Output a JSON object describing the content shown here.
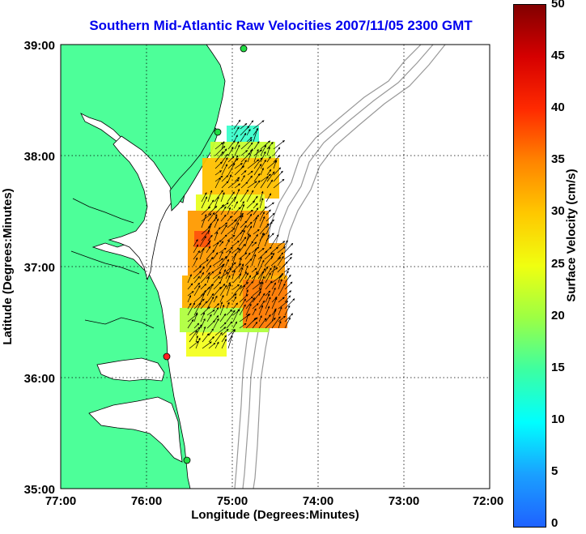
{
  "title": "Southern Mid-Atlantic Raw Velocities 2007/11/05 2300 GMT",
  "axes": {
    "xlabel": "Longitude (Degrees:Minutes)",
    "ylabel": "Latitude (Degrees:Minutes)",
    "x_ticks": [
      "77:00",
      "76:00",
      "75:00",
      "74:00",
      "73:00",
      "72:00"
    ],
    "y_ticks": [
      "39:00",
      "38:00",
      "37:00",
      "36:00",
      "35:00"
    ],
    "x_range_deg_west": [
      77,
      72
    ],
    "y_range_deg_north": [
      35,
      39
    ],
    "grid": "dotted"
  },
  "colorbar": {
    "label": "Surface Velocity (cm/s)",
    "ticks": [
      "50",
      "45",
      "40",
      "35",
      "30",
      "25",
      "20",
      "15",
      "10",
      "5",
      "0"
    ],
    "range": [
      0,
      50
    ]
  },
  "colors": {
    "land": "#4dff99",
    "coast": "#000000",
    "bathymetry": "#999999",
    "title": "#0000ee"
  },
  "stations": [
    {
      "color": "green",
      "lon": -74.85,
      "lat": 38.95
    },
    {
      "color": "green",
      "lon": -75.1,
      "lat": 38.22
    },
    {
      "color": "red",
      "lon": -75.75,
      "lat": 36.2
    },
    {
      "color": "green",
      "lon": -75.5,
      "lat": 35.25
    }
  ]
}
